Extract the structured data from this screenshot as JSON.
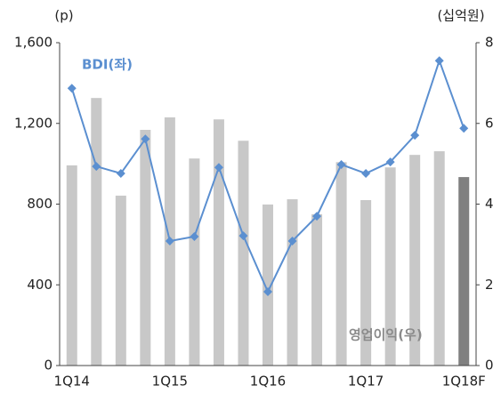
{
  "chart_data": {
    "type": "bar-line",
    "categories": [
      "1Q14",
      null,
      null,
      null,
      "1Q15",
      null,
      null,
      null,
      "1Q16",
      null,
      null,
      null,
      "1Q17",
      null,
      null,
      null,
      "1Q18F"
    ],
    "series": [
      {
        "name": "영업이익(우)",
        "type": "bar",
        "axis": "y2",
        "color": "#c8c8c8",
        "colors": [
          "#c8c8c8",
          "#c8c8c8",
          "#c8c8c8",
          "#c8c8c8",
          "#c8c8c8",
          "#c8c8c8",
          "#c8c8c8",
          "#c8c8c8",
          "#c8c8c8",
          "#c8c8c8",
          "#c8c8c8",
          "#c8c8c8",
          "#c8c8c8",
          "#c8c8c8",
          "#c8c8c8",
          "#c8c8c8",
          "#808080"
        ],
        "values": [
          4.96,
          6.63,
          4.21,
          5.84,
          6.15,
          5.13,
          6.1,
          5.57,
          3.99,
          4.12,
          3.75,
          5.04,
          4.1,
          4.91,
          5.22,
          5.31,
          4.67
        ]
      },
      {
        "name": "BDI(좌)",
        "type": "line",
        "axis": "y",
        "color": "#5b8fd0",
        "values": [
          1374,
          987,
          952,
          1123,
          617,
          639,
          982,
          643,
          366,
          617,
          740,
          996,
          952,
          1009,
          1141,
          1511,
          1176
        ]
      }
    ],
    "ylim": [
      0,
      1600
    ],
    "yticks": [
      0,
      400,
      800,
      {
        "value": 1200,
        "label": "1,200"
      },
      {
        "value": 1600,
        "label": "1,600"
      }
    ],
    "y2lim": [
      0,
      8
    ],
    "y2ticks": [
      0,
      2,
      4,
      6,
      8
    ],
    "y_unit": "(p)",
    "y2_unit": "(십억원)"
  }
}
